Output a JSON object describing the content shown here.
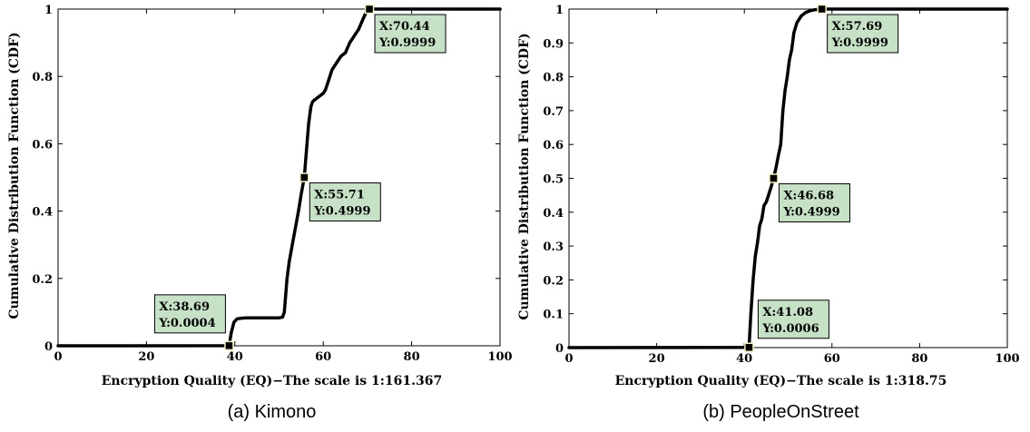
{
  "chart_data": [
    {
      "type": "line",
      "caption": "(a) Kimono",
      "xlabel": "Encryption Quality (EQ)−The scale is 1:161.367",
      "ylabel": "Cumulative Distribution Function (CDF)",
      "xlim": [
        0,
        100
      ],
      "ylim": [
        0,
        1
      ],
      "xticks": [
        0,
        20,
        40,
        60,
        80,
        100
      ],
      "yticks": [
        0,
        0.2,
        0.4,
        0.6,
        0.8,
        1
      ],
      "xtick_labels": [
        "0",
        "20",
        "40",
        "60",
        "80",
        "100"
      ],
      "ytick_labels": [
        "0",
        "0.2",
        "0.4",
        "0.6",
        "0.8",
        "1"
      ],
      "series": [
        {
          "x": [
            0,
            38.69,
            39.2,
            39.8,
            40.5,
            41.5,
            42.5,
            44,
            46,
            48,
            50,
            50.8,
            51.2,
            51.5,
            51.8,
            52.3,
            53,
            53.7,
            54.4,
            55,
            55.71,
            56.2,
            56.7,
            57.2,
            57.6,
            58,
            59,
            60,
            60.5,
            61,
            62,
            63,
            64,
            65,
            66,
            67,
            67.5,
            68,
            68.5,
            69,
            69.5,
            70,
            70.44,
            80,
            100
          ],
          "y": [
            0,
            0.0004,
            0.04,
            0.07,
            0.08,
            0.082,
            0.083,
            0.083,
            0.083,
            0.083,
            0.083,
            0.085,
            0.1,
            0.15,
            0.2,
            0.25,
            0.3,
            0.35,
            0.4,
            0.45,
            0.4999,
            0.58,
            0.66,
            0.71,
            0.725,
            0.73,
            0.74,
            0.75,
            0.76,
            0.78,
            0.82,
            0.84,
            0.86,
            0.87,
            0.9,
            0.92,
            0.93,
            0.94,
            0.955,
            0.97,
            0.985,
            0.995,
            0.9999,
            1.0,
            1.0
          ]
        }
      ],
      "annotations": [
        {
          "x": 38.69,
          "y": 0.0004,
          "text": [
            "X:38.69",
            "Y:0.0004"
          ],
          "position": "upper-left"
        },
        {
          "x": 55.71,
          "y": 0.4999,
          "text": [
            "X:55.71",
            "Y:0.4999"
          ],
          "position": "lower-right"
        },
        {
          "x": 70.44,
          "y": 0.9999,
          "text": [
            "X:70.44",
            "Y:0.9999"
          ],
          "position": "lower-right"
        }
      ]
    },
    {
      "type": "line",
      "caption": "(b) PeopleOnStreet",
      "xlabel": "Encryption Quality (EQ)−The scale is 1:318.75",
      "ylabel": "Cumulative Distribution Function (CDF)",
      "xlim": [
        0,
        100
      ],
      "ylim": [
        0,
        1
      ],
      "xticks": [
        0,
        20,
        40,
        60,
        80,
        100
      ],
      "yticks": [
        0,
        0.1,
        0.2,
        0.3,
        0.4,
        0.5,
        0.6,
        0.7,
        0.8,
        0.9,
        1
      ],
      "xtick_labels": [
        "0",
        "20",
        "40",
        "60",
        "80",
        "100"
      ],
      "ytick_labels": [
        "0",
        "0.1",
        "0.2",
        "0.3",
        "0.4",
        "0.5",
        "0.6",
        "0.7",
        "0.8",
        "0.9",
        "1"
      ],
      "series": [
        {
          "x": [
            0,
            41.08,
            41.5,
            42,
            42.5,
            43,
            43.5,
            44,
            44.5,
            45,
            45.5,
            46,
            46.68,
            47.2,
            47.8,
            48.3,
            48.8,
            49.3,
            49.8,
            50.3,
            50.8,
            51.3,
            52,
            53,
            54,
            55,
            56,
            57.69,
            70,
            100
          ],
          "y": [
            0,
            0.0006,
            0.1,
            0.2,
            0.27,
            0.31,
            0.36,
            0.38,
            0.42,
            0.43,
            0.45,
            0.47,
            0.4999,
            0.53,
            0.57,
            0.6,
            0.7,
            0.76,
            0.8,
            0.85,
            0.88,
            0.93,
            0.96,
            0.98,
            0.99,
            0.995,
            0.998,
            0.9999,
            1.0,
            1.0
          ]
        }
      ],
      "annotations": [
        {
          "x": 41.08,
          "y": 0.0006,
          "text": [
            "X:41.08",
            "Y:0.0006"
          ],
          "position": "upper-right"
        },
        {
          "x": 46.68,
          "y": 0.4999,
          "text": [
            "X:46.68",
            "Y:0.4999"
          ],
          "position": "lower-right"
        },
        {
          "x": 57.69,
          "y": 0.9999,
          "text": [
            "X:57.69",
            "Y:0.9999"
          ],
          "position": "lower-right"
        }
      ]
    }
  ]
}
